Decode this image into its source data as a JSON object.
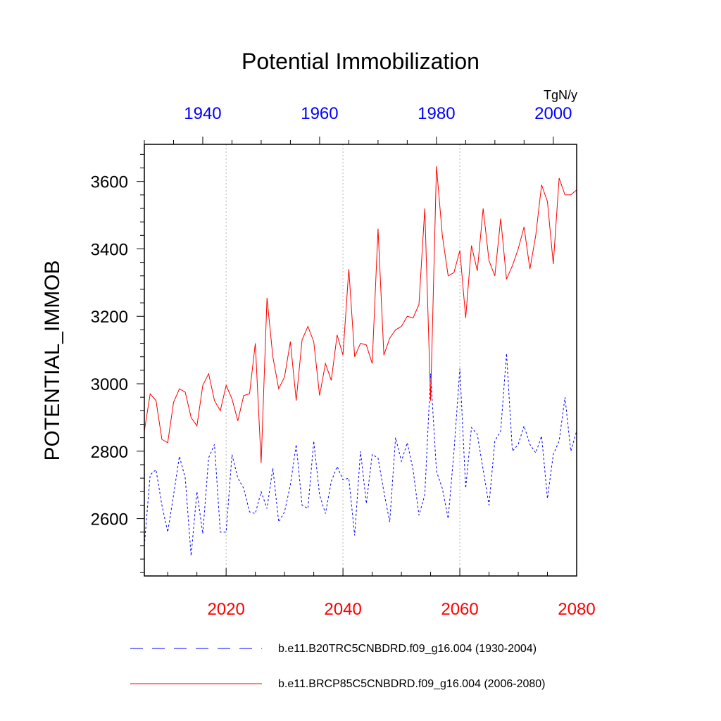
{
  "chart_data": {
    "type": "line",
    "title": "Potential Immobilization",
    "units": "TgN/y",
    "ylabel": "POTENTIAL_IMMOB",
    "ylim": [
      2430,
      3710
    ],
    "yticks": [
      2600,
      2800,
      3000,
      3200,
      3400,
      3600
    ],
    "bottom_axis": {
      "range": [
        2006,
        2080
      ],
      "ticks": [
        2020,
        2040,
        2060,
        2080
      ],
      "color": "#ff0000"
    },
    "top_axis": {
      "range": [
        1930,
        2004
      ],
      "ticks": [
        1940,
        1960,
        1980,
        2000
      ],
      "color": "#0000ff"
    },
    "grid_x": [
      2020,
      2040,
      2060
    ],
    "series": [
      {
        "name": "b.e11.B20TRC5CNBDRD.f09_g16.004 (1930-2004)",
        "color": "#0000ff",
        "style": "dashed",
        "axis": "top",
        "x_start": 1930,
        "values": [
          2520,
          2730,
          2745,
          2640,
          2560,
          2670,
          2785,
          2720,
          2490,
          2680,
          2555,
          2780,
          2820,
          2560,
          2560,
          2790,
          2720,
          2690,
          2620,
          2615,
          2680,
          2630,
          2750,
          2590,
          2620,
          2700,
          2820,
          2640,
          2630,
          2830,
          2670,
          2615,
          2710,
          2755,
          2715,
          2720,
          2550,
          2800,
          2645,
          2790,
          2780,
          2680,
          2590,
          2840,
          2770,
          2825,
          2745,
          2610,
          2670,
          3030,
          2740,
          2690,
          2600,
          2800,
          3045,
          2690,
          2870,
          2850,
          2745,
          2640,
          2830,
          2860,
          3090,
          2800,
          2820,
          2875,
          2820,
          2795,
          2845,
          2660,
          2790,
          2830,
          2960,
          2800,
          2860
        ]
      },
      {
        "name": "b.e11.BRCP85C5CNBDRD.f09_g16.004 (2006-2080)",
        "color": "#ff0000",
        "style": "solid",
        "axis": "bottom",
        "x_start": 2006,
        "values": [
          2860,
          2970,
          2950,
          2835,
          2825,
          2945,
          2985,
          2975,
          2900,
          2875,
          2995,
          3030,
          2950,
          2920,
          2995,
          2955,
          2890,
          2965,
          2970,
          3120,
          2765,
          3255,
          3080,
          2985,
          3020,
          3125,
          2950,
          3130,
          3170,
          3125,
          2965,
          3060,
          3010,
          3145,
          3085,
          3340,
          3080,
          3120,
          3115,
          3060,
          3460,
          3085,
          3135,
          3160,
          3170,
          3200,
          3195,
          3235,
          3520,
          2950,
          3645,
          3440,
          3320,
          3330,
          3395,
          3195,
          3410,
          3335,
          3520,
          3365,
          3320,
          3490,
          3310,
          3350,
          3400,
          3465,
          3340,
          3440,
          3590,
          3540,
          3355,
          3610,
          3560,
          3560,
          3575
        ]
      }
    ]
  }
}
